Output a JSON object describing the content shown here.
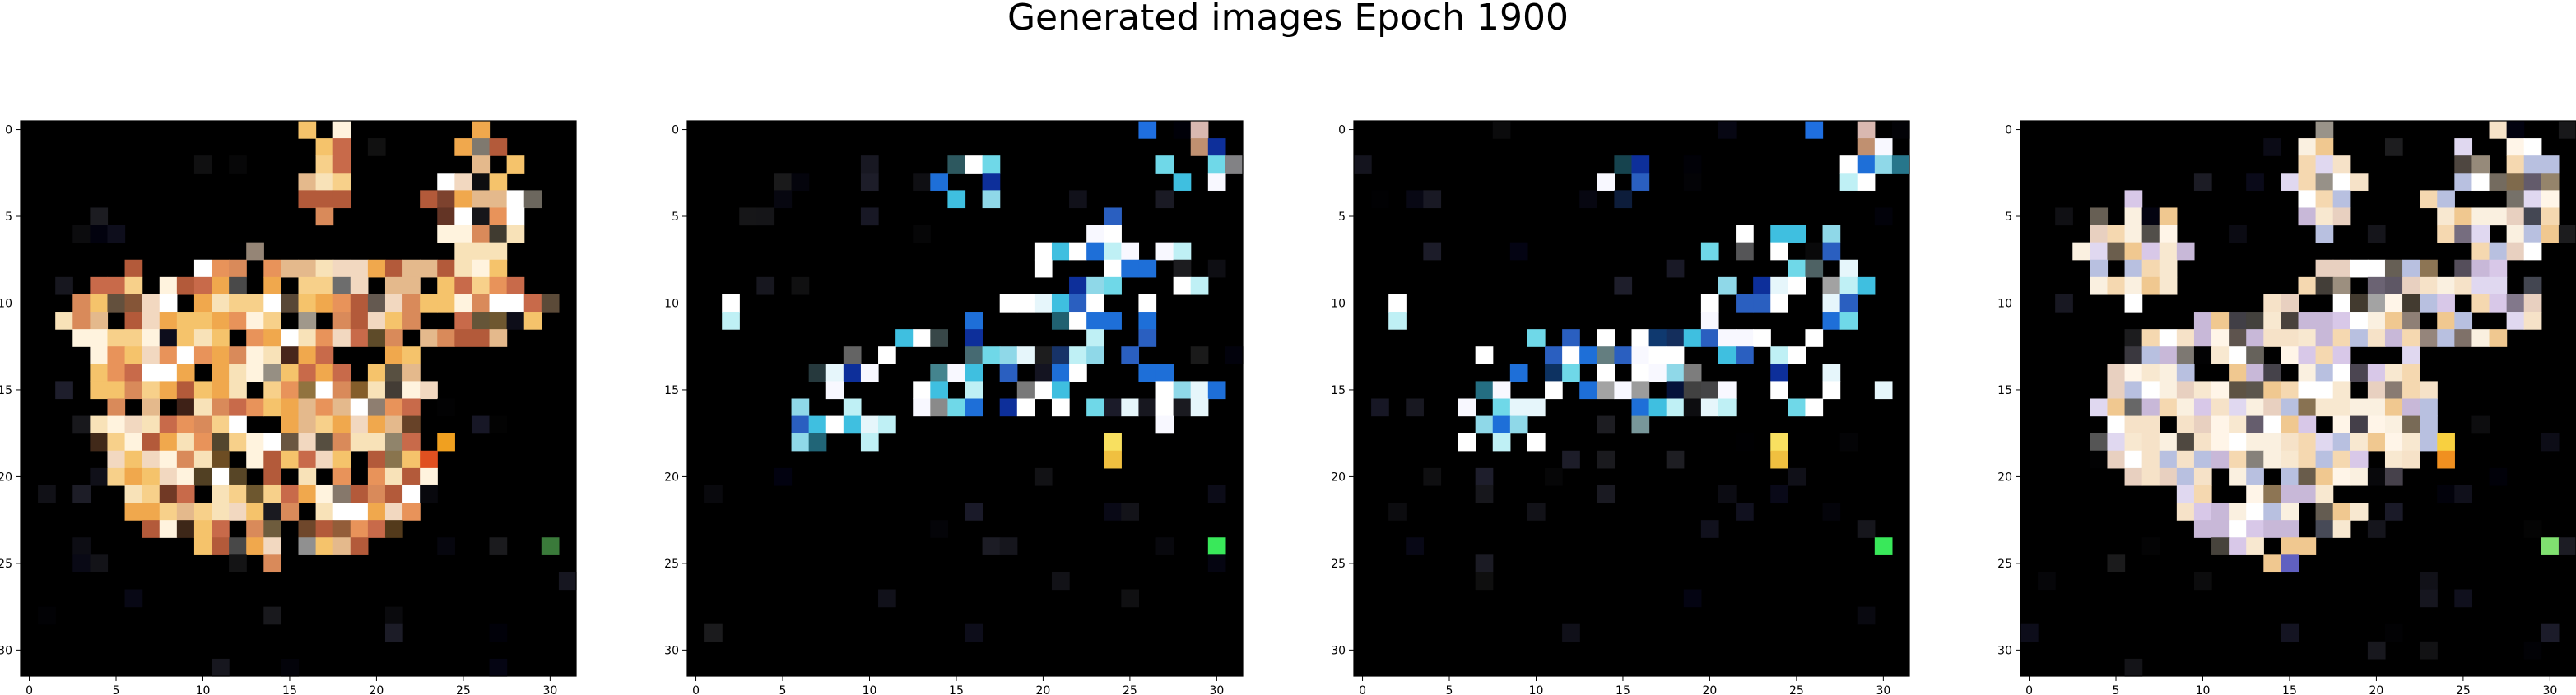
{
  "figure": {
    "title": "Generated images Epoch 1900"
  },
  "chart_data": [
    {
      "type": "image",
      "title": "",
      "xlim": [
        -0.5,
        31.5
      ],
      "ylim": [
        31.5,
        -0.5
      ],
      "x_ticks": [
        0,
        5,
        10,
        15,
        20,
        25,
        30
      ],
      "y_ticks": [
        0,
        5,
        10,
        15,
        20,
        25,
        30
      ],
      "x_tick_labels": [
        "0",
        "5",
        "10",
        "15",
        "20",
        "25",
        "30"
      ],
      "y_tick_labels": [
        "0",
        "5",
        "10",
        "15",
        "20",
        "25",
        "30"
      ],
      "background": "#000000",
      "content": "warm orange/cream pixel blob"
    },
    {
      "type": "image",
      "title": "",
      "xlim": [
        -0.5,
        31.5
      ],
      "ylim": [
        31.5,
        -0.5
      ],
      "x_ticks": [
        0,
        5,
        10,
        15,
        20,
        25,
        30
      ],
      "y_ticks": [
        0,
        5,
        10,
        15,
        20,
        25,
        30
      ],
      "x_tick_labels": [
        "0",
        "5",
        "10",
        "15",
        "20",
        "25",
        "30"
      ],
      "y_tick_labels": [
        "0",
        "5",
        "10",
        "15",
        "20",
        "25",
        "30"
      ],
      "background": "#000000",
      "content": "sparse white/cyan/blue pixels"
    },
    {
      "type": "image",
      "title": "",
      "xlim": [
        -0.5,
        31.5
      ],
      "ylim": [
        31.5,
        -0.5
      ],
      "x_ticks": [
        0,
        5,
        10,
        15,
        20,
        25,
        30
      ],
      "y_ticks": [
        0,
        5,
        10,
        15,
        20,
        25,
        30
      ],
      "x_tick_labels": [
        "0",
        "5",
        "10",
        "15",
        "20",
        "25",
        "30"
      ],
      "y_tick_labels": [
        "0",
        "5",
        "10",
        "15",
        "20",
        "25",
        "30"
      ],
      "background": "#000000",
      "content": "sparse white/cyan/blue pixels"
    },
    {
      "type": "image",
      "title": "",
      "xlim": [
        -0.5,
        31.5
      ],
      "ylim": [
        31.5,
        -0.5
      ],
      "x_ticks": [
        0,
        5,
        10,
        15,
        20,
        25,
        30
      ],
      "y_ticks": [
        0,
        5,
        10,
        15,
        20,
        25,
        30
      ],
      "x_tick_labels": [
        "0",
        "5",
        "10",
        "15",
        "20",
        "25",
        "30"
      ],
      "y_tick_labels": [
        "0",
        "5",
        "10",
        "15",
        "20",
        "25",
        "30"
      ],
      "background": "#000000",
      "content": "cream/pastel pixel blob"
    }
  ]
}
